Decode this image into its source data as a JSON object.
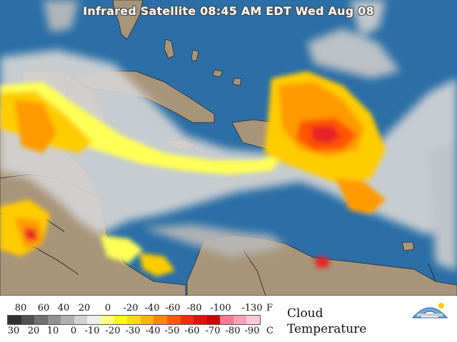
{
  "map": {
    "title": "Infrared Satellite 08:45 AM EDT Wed Aug 08",
    "ocean_color": "#2b6fa6",
    "land_color": "#a89579",
    "cloud_colors": [
      "#d4d4d4",
      "#b8b8b8",
      "#ffff55",
      "#ffcc00",
      "#ff9a00",
      "#ff5500",
      "#e82020",
      "#ff8fb0"
    ]
  },
  "legend": {
    "fahrenheit_values": [
      "80",
      "60",
      "40",
      "20",
      "0",
      "-20",
      "-40",
      "-60",
      "-80",
      "-100",
      "-130"
    ],
    "fahrenheit_unit": "F",
    "celsius_values": [
      "30",
      "20",
      "10",
      "0",
      "-10",
      "-20",
      "-30",
      "-40",
      "-50",
      "-60",
      "-70",
      "-80",
      "-90"
    ],
    "celsius_unit": "C",
    "title_line1": "Cloud",
    "title_line2": "Temperature",
    "color_scale": [
      "#303030",
      "#505050",
      "#707070",
      "#909090",
      "#b0b0b0",
      "#d0d0d0",
      "#eeeeee",
      "#ffff80",
      "#ffff00",
      "#ffdd00",
      "#ffb400",
      "#ff8a00",
      "#ff5a00",
      "#ff2a00",
      "#e01010",
      "#c80000",
      "#ff7a90",
      "#ffa0b8",
      "#ffc8d8"
    ]
  },
  "logo": {
    "icon": "weather-logo-icon"
  }
}
